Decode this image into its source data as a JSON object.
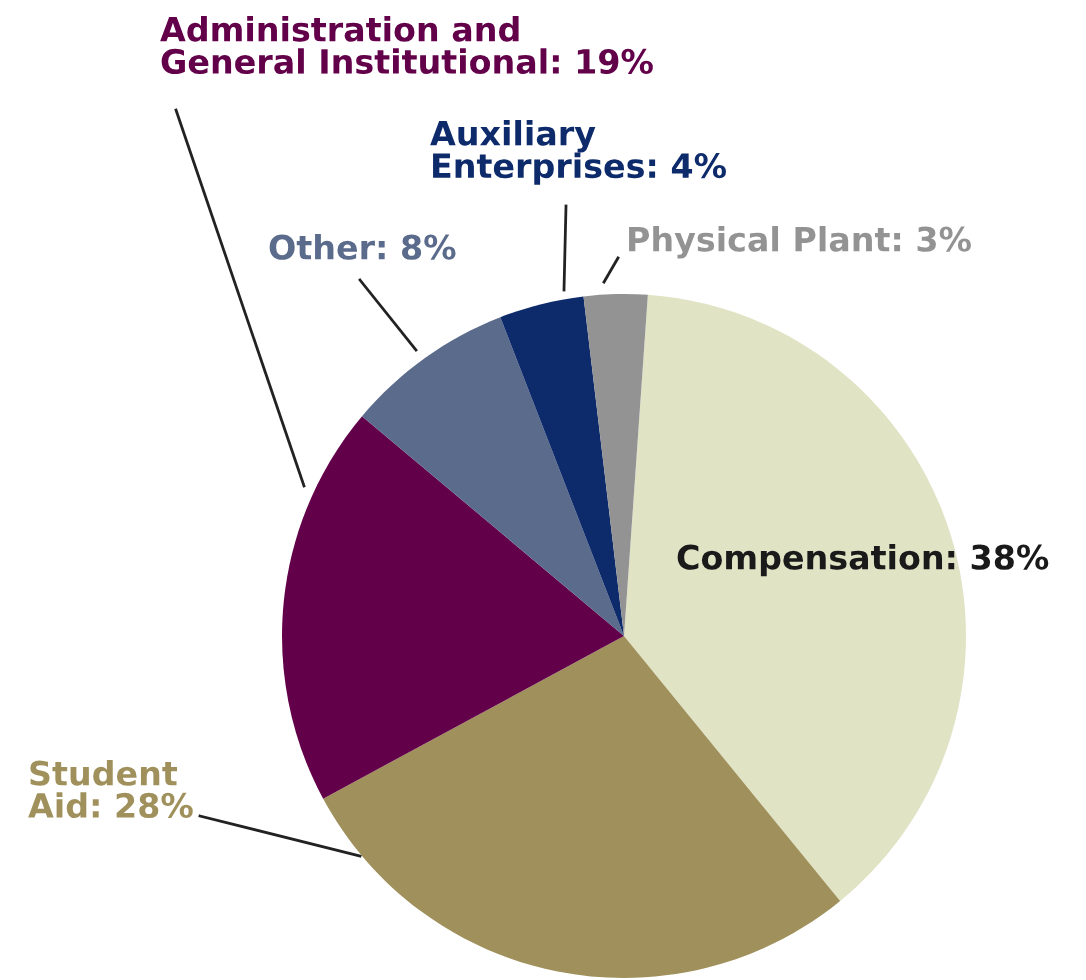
{
  "chart_data": {
    "type": "pie",
    "categories": [
      "Compensation",
      "Student Aid",
      "Administration and General Institutional",
      "Other",
      "Auxiliary Enterprises",
      "Physical Plant"
    ],
    "values": [
      38,
      28,
      19,
      8,
      4,
      3
    ],
    "value_labels": [
      "38%",
      "28%",
      "19%",
      "8%",
      "4%",
      "3%"
    ],
    "colors": [
      "#e1e3c5",
      "#a0915c",
      "#62004a",
      "#5b6b8c",
      "#0d2a6b",
      "#939393"
    ]
  }
}
